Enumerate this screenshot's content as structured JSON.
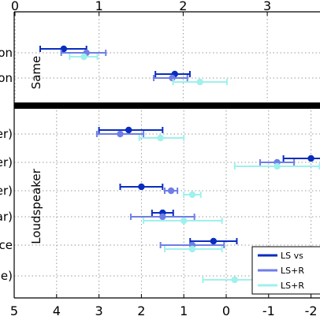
{
  "chart_data": {
    "type": "scatter",
    "subtype": "dot-and-whisker (horizontal error bars)",
    "grid": true,
    "top_axis": {
      "range": [
        0,
        3.6
      ],
      "ticks": [
        0,
        1,
        2,
        3
      ],
      "tick_labels": [
        "0",
        "1",
        "2",
        "3"
      ]
    },
    "bottom_axis": {
      "range": [
        -2.3,
        5
      ],
      "reversed": true,
      "ticks": [
        5,
        4,
        3,
        2,
        1,
        0,
        -1,
        -2
      ],
      "tick_labels": [
        "5",
        "4",
        "3",
        "2",
        "1",
        "0",
        "-1",
        "-2"
      ]
    },
    "groups": [
      {
        "label": "Same",
        "axis": "top",
        "rows": [
          {
            "label": "on",
            "points": [
              {
                "series": 0,
                "value": 0.58,
                "low": 0.3,
                "high": 0.85
              },
              {
                "series": 1,
                "value": 0.85,
                "low": 0.55,
                "high": 1.08
              },
              {
                "series": 2,
                "value": 0.82,
                "low": 0.65,
                "high": 0.98
              }
            ]
          },
          {
            "label": "on",
            "points": [
              {
                "series": 0,
                "value": 1.9,
                "low": 1.67,
                "high": 2.08
              },
              {
                "series": 1,
                "value": 1.87,
                "low": 1.65,
                "high": 2.05
              },
              {
                "series": 2,
                "value": 2.2,
                "low": 1.88,
                "high": 2.52
              }
            ]
          }
        ]
      },
      {
        "label": "Loudspeaker",
        "axis": "bottom",
        "rows": [
          {
            "label": "er)",
            "points": [
              {
                "series": 0,
                "value": 2.3,
                "low": 1.5,
                "high": 3.0
              },
              {
                "series": 1,
                "value": 2.5,
                "low": 1.95,
                "high": 3.05
              },
              {
                "series": 2,
                "value": 1.55,
                "low": 1.0,
                "high": 2.05
              }
            ]
          },
          {
            "label": "er)",
            "points": [
              {
                "series": 0,
                "value": -2.0,
                "low": -2.4,
                "high": -1.35
              },
              {
                "series": 1,
                "value": -1.2,
                "low": -1.6,
                "high": -0.8
              },
              {
                "series": 2,
                "value": -1.2,
                "low": -2.2,
                "high": -0.2
              }
            ]
          },
          {
            "label": "er)",
            "points": [
              {
                "series": 0,
                "value": 2.0,
                "low": 1.5,
                "high": 2.5
              },
              {
                "series": 1,
                "value": 1.3,
                "low": 1.15,
                "high": 1.45
              },
              {
                "series": 2,
                "value": 0.8,
                "low": 0.6,
                "high": 1.0
              }
            ]
          },
          {
            "label": "ar)",
            "points": [
              {
                "series": 0,
                "value": 1.5,
                "low": 1.25,
                "high": 1.75
              },
              {
                "series": 1,
                "value": 1.5,
                "low": 0.75,
                "high": 2.25
              },
              {
                "series": 2,
                "value": 1.0,
                "low": 0.1,
                "high": 1.95
              }
            ]
          },
          {
            "label": "ce",
            "points": [
              {
                "series": 0,
                "value": 0.3,
                "low": -0.25,
                "high": 0.85
              },
              {
                "series": 1,
                "value": 0.8,
                "low": 0.05,
                "high": 1.55
              },
              {
                "series": 2,
                "value": 0.8,
                "low": 0.1,
                "high": 1.45
              }
            ]
          },
          {
            "label": "e)",
            "points": [
              {
                "series": 2,
                "value": -0.2,
                "low": -1.3,
                "high": 0.55
              }
            ]
          }
        ]
      }
    ],
    "series": [
      {
        "name": "LS vs",
        "color": "#0a2dbf"
      },
      {
        "name": "LS+R",
        "color": "#6f7ee6"
      },
      {
        "name": "LS+R",
        "color": "#9ff1ec"
      }
    ],
    "legend_position": "bottom-right"
  }
}
